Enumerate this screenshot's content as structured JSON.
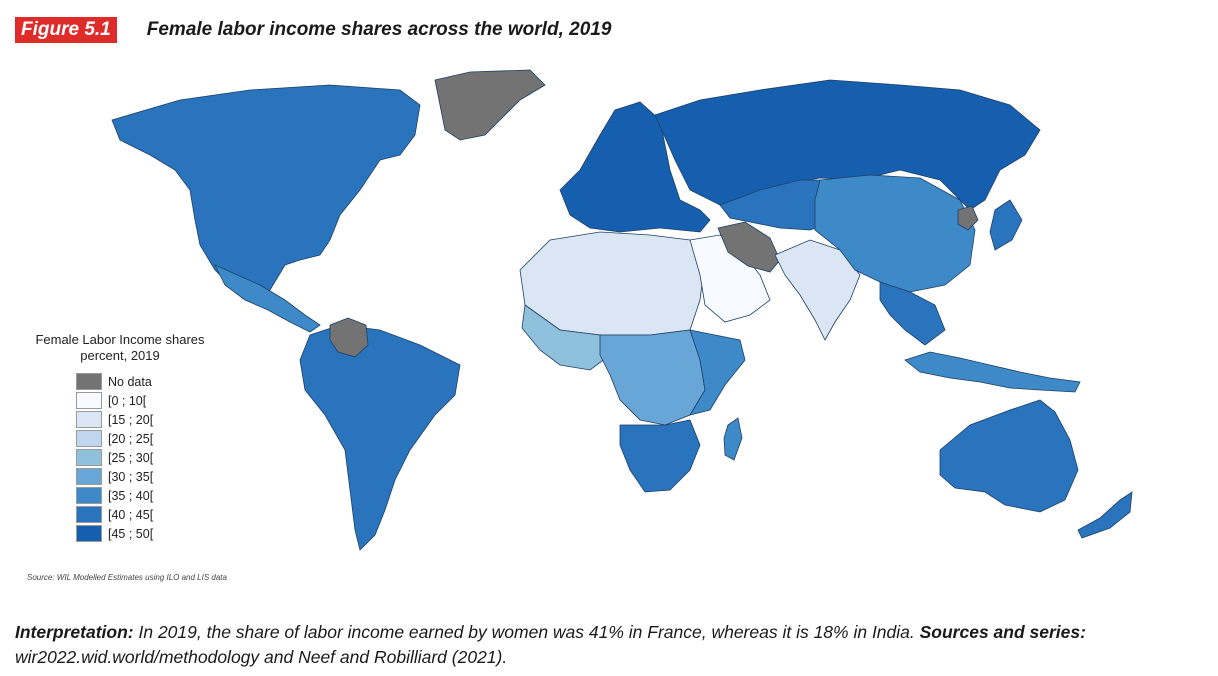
{
  "header": {
    "figure_label": "Figure 5.1",
    "title": "Female labor income shares across the world, 2019"
  },
  "legend": {
    "title_line1": "Female Labor Income shares",
    "title_line2": "percent, 2019",
    "items": [
      {
        "label": "No data",
        "color": "#737373"
      },
      {
        "label": "[0 ; 10[",
        "color": "#f7fbff"
      },
      {
        "label": "[15 ; 20[",
        "color": "#dbe6f5"
      },
      {
        "label": "[20 ; 25[",
        "color": "#c0d6ee"
      },
      {
        "label": "[25 ; 30[",
        "color": "#8fc0dc"
      },
      {
        "label": "[30 ; 35[",
        "color": "#67a6d6"
      },
      {
        "label": "[35 ; 40[",
        "color": "#3e8ac8"
      },
      {
        "label": "[40 ; 45[",
        "color": "#2a74bd"
      },
      {
        "label": "[45 ; 50[",
        "color": "#155fae"
      }
    ]
  },
  "source": "Source: WIL Modelled Estimates using ILO and LIS data",
  "note": {
    "interp_label": "Interpretation:",
    "interp_text": " In 2019, the share of labor income earned by women was 41% in France, whereas it is 18% in India. ",
    "sources_label": "Sources and series:",
    "sources_text": " wir2022.wid.world/methodology and Neef and Robilliard (2021)."
  },
  "map_data": {
    "regions": [
      {
        "name": "north-america",
        "bin": "[40 ; 45["
      },
      {
        "name": "greenland",
        "bin": "No data"
      },
      {
        "name": "central-america",
        "bin": "[35 ; 40["
      },
      {
        "name": "south-america",
        "bin": "[40 ; 45["
      },
      {
        "name": "venezuela",
        "bin": "No data"
      },
      {
        "name": "europe",
        "bin": "[45 ; 50["
      },
      {
        "name": "russia",
        "bin": "[45 ; 50["
      },
      {
        "name": "north-africa",
        "bin": "[15 ; 20["
      },
      {
        "name": "middle-east",
        "bin": "[0 ; 10["
      },
      {
        "name": "iran",
        "bin": "No data"
      },
      {
        "name": "west-africa",
        "bin": "[25 ; 30["
      },
      {
        "name": "central-africa",
        "bin": "[30 ; 35["
      },
      {
        "name": "east-africa",
        "bin": "[35 ; 40["
      },
      {
        "name": "southern-africa",
        "bin": "[40 ; 45["
      },
      {
        "name": "madagascar",
        "bin": "[35 ; 40["
      },
      {
        "name": "central-asia",
        "bin": "[40 ; 45["
      },
      {
        "name": "india",
        "bin": "[15 ; 20["
      },
      {
        "name": "china",
        "bin": "[35 ; 40["
      },
      {
        "name": "north-korea",
        "bin": "No data"
      },
      {
        "name": "japan",
        "bin": "[40 ; 45["
      },
      {
        "name": "southeast-asia",
        "bin": "[40 ; 45["
      },
      {
        "name": "indonesia",
        "bin": "[35 ; 40["
      },
      {
        "name": "australia",
        "bin": "[40 ; 45["
      },
      {
        "name": "new-zealand",
        "bin": "[40 ; 45["
      }
    ]
  }
}
